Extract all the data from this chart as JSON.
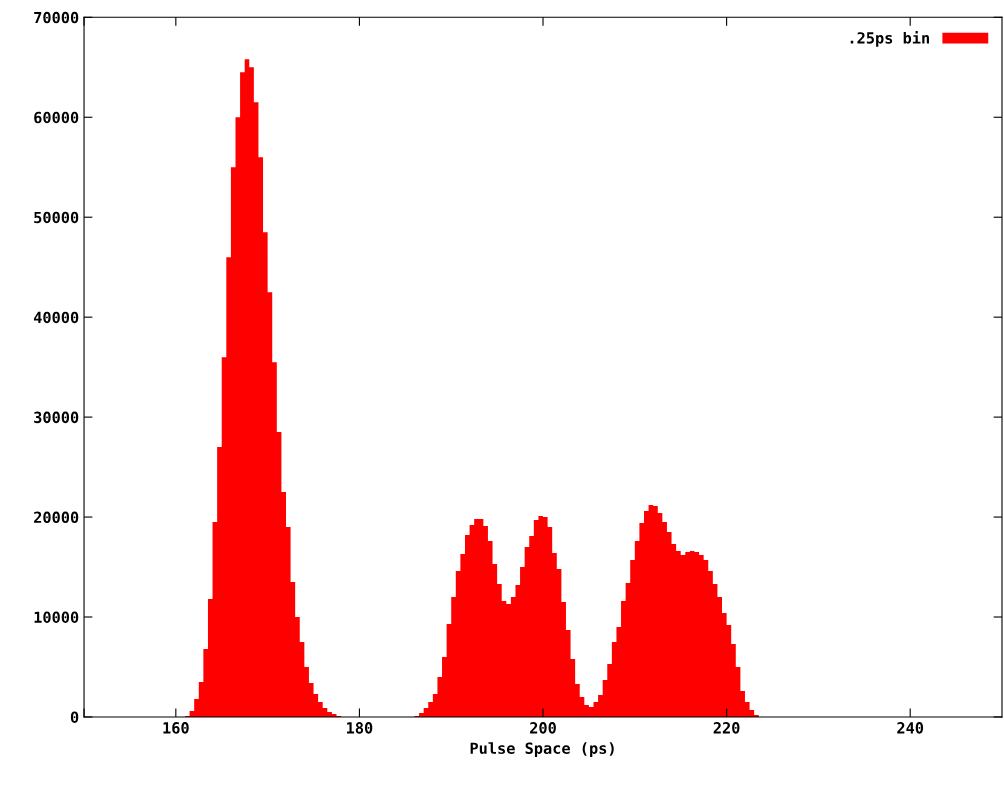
{
  "chart_data": {
    "type": "histogram",
    "xlabel": "Pulse Space (ps)",
    "bins": [
      161,
      161.5,
      162,
      162.5,
      163,
      163.5,
      164,
      164.5,
      165,
      165.5,
      166,
      166.5,
      167,
      167.5,
      168,
      168.5,
      169,
      169.5,
      170,
      170.5,
      171,
      171.5,
      172,
      172.5,
      173,
      173.5,
      174,
      174.5,
      175,
      175.5,
      176,
      176.5,
      177,
      177.5,
      178,
      178.5,
      179,
      179.5,
      180,
      180.5,
      181,
      181.5,
      182,
      182.5,
      183,
      183.5,
      184,
      184.5,
      185,
      185.5,
      186,
      186.5,
      187,
      187.5,
      188,
      188.5,
      189,
      189.5,
      190,
      190.5,
      191,
      191.5,
      192,
      192.5,
      193,
      193.5,
      194,
      194.5,
      195,
      195.5,
      196,
      196.5,
      197,
      197.5,
      198,
      198.5,
      199,
      199.5,
      200,
      200.5,
      201,
      201.5,
      202,
      202.5,
      203,
      203.5,
      204,
      204.5,
      205,
      205.5,
      206,
      206.5,
      207,
      207.5,
      208,
      208.5,
      209,
      209.5,
      210,
      210.5,
      211,
      211.5,
      212,
      212.5,
      213,
      213.5,
      214,
      214.5,
      215,
      215.5,
      216,
      216.5,
      217,
      217.5,
      218,
      218.5,
      219,
      219.5,
      220,
      220.5,
      221,
      221.5,
      222,
      222.5,
      223,
      223.5
    ],
    "series": [
      {
        "name": ".25ps bin",
        "color": "#ff0000",
        "values": [
          100,
          600,
          1800,
          3500,
          6800,
          11800,
          19500,
          27000,
          36000,
          46000,
          55000,
          60000,
          64500,
          65800,
          65000,
          61500,
          56000,
          48500,
          42500,
          35500,
          28500,
          22500,
          19000,
          13500,
          10000,
          7500,
          5000,
          3400,
          2300,
          1500,
          900,
          500,
          300,
          100,
          0,
          0,
          0,
          0,
          0,
          0,
          0,
          0,
          0,
          0,
          0,
          0,
          0,
          0,
          0,
          0,
          100,
          400,
          900,
          1500,
          2300,
          4000,
          6000,
          9300,
          12000,
          14600,
          16300,
          18200,
          19200,
          19800,
          19800,
          19100,
          17600,
          15300,
          13300,
          11600,
          11300,
          12000,
          13200,
          15000,
          17000,
          18100,
          19700,
          20100,
          20000,
          19000,
          16400,
          14800,
          11500,
          8700,
          5800,
          3300,
          2000,
          1200,
          1000,
          1500,
          2200,
          3700,
          5300,
          7500,
          9000,
          11600,
          13400,
          15700,
          17600,
          19400,
          20600,
          21200,
          21100,
          20400,
          19500,
          18500,
          17300,
          16600,
          16200,
          16500,
          16600,
          16500,
          16200,
          15700,
          14600,
          13300,
          12000,
          10400,
          9200,
          7300,
          5000,
          2600,
          1500,
          700,
          200
        ]
      }
    ],
    "xlim": [
      150,
      250
    ],
    "xticks": [
      {
        "value": 150,
        "label": null
      },
      160,
      180,
      200,
      220,
      240
    ],
    "ylim": [
      0,
      70000
    ],
    "yticks": [
      0,
      10000,
      20000,
      30000,
      40000,
      50000,
      60000,
      70000
    ],
    "grid": false,
    "legend": "top right"
  }
}
